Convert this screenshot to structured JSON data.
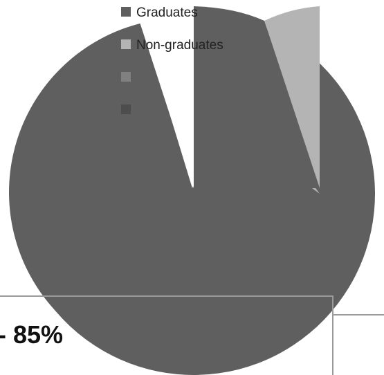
{
  "chart_data": {
    "type": "pie",
    "title": "",
    "slices": [
      {
        "label": "Graduates",
        "value": 85,
        "color": "#5f5f5f",
        "explode": 0,
        "label_offset": [
          0,
          0
        ]
      },
      {
        "label": "Non-graduates",
        "value": 5,
        "color": "#b4b4b4",
        "explode": 0,
        "label_offset": [
          176,
          -25
        ]
      },
      {
        "label": "",
        "value": 10,
        "color": "#5f5f5f",
        "explode": 1,
        "label_offset": [
          -4,
          0
        ]
      }
    ],
    "legend": {
      "position": "top",
      "items": [
        {
          "label": "Graduates",
          "color": "#5f5f5f"
        },
        {
          "label": "Non-graduates",
          "color": "#b4b4b4"
        },
        {
          "label": "",
          "color": "#808080"
        },
        {
          "label": "",
          "color": "#4d4d4d"
        }
      ]
    },
    "data_labels": [
      {
        "text": "- 85%",
        "slice": 0
      }
    ]
  }
}
